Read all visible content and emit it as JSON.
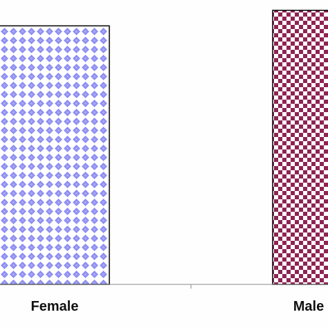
{
  "chart_data": {
    "type": "bar",
    "categories": [
      "Female",
      "Male"
    ],
    "values": [
      1000,
      1060
    ],
    "title": "",
    "xlabel": "",
    "ylabel": "",
    "ylim": [
      0,
      1100
    ],
    "grid": false,
    "legend": "none"
  },
  "colors": {
    "background": "#fefefe",
    "female_pattern_fill": "#8f8ff2",
    "female_pattern_bg": "#ffffff",
    "male_pattern_fill": "#8e2454",
    "male_pattern_bg": "#ffffff",
    "bar_outline": "#000000",
    "axis": "#888888",
    "label": "#111111"
  },
  "patterns": {
    "female": "diamond-dots",
    "male": "checkerboard"
  }
}
